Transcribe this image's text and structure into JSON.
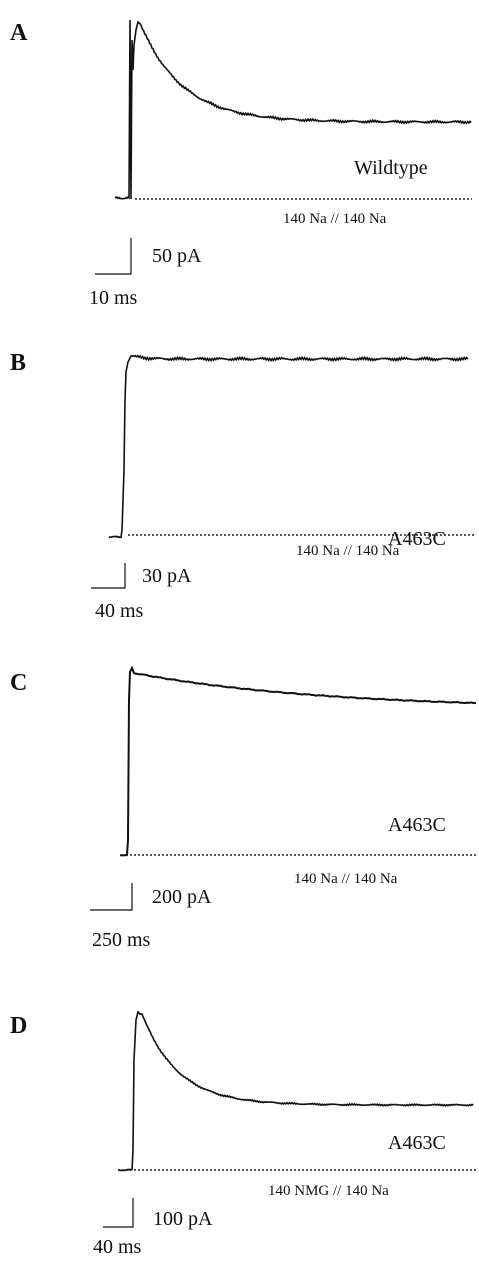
{
  "figure": {
    "panels": [
      {
        "label": "A",
        "construct": "Wildtype",
        "solutions": "140 Na // 140 Na",
        "scale_current": "50  pA",
        "scale_time": "10  ms"
      },
      {
        "label": "B",
        "construct": "A463C",
        "solutions": "140 Na // 140 Na",
        "scale_current": "30  pA",
        "scale_time": "40  ms"
      },
      {
        "label": "C",
        "construct": "A463C",
        "solutions": "140 Na // 140 Na",
        "scale_current": "200  pA",
        "scale_time": "250  ms"
      },
      {
        "label": "D",
        "construct": "A463C",
        "solutions": "140 NMG // 140 Na",
        "scale_current": "100  pA",
        "scale_time": "40  ms"
      }
    ]
  },
  "colors": {
    "trace": "#111111",
    "baseline": "#222222"
  }
}
